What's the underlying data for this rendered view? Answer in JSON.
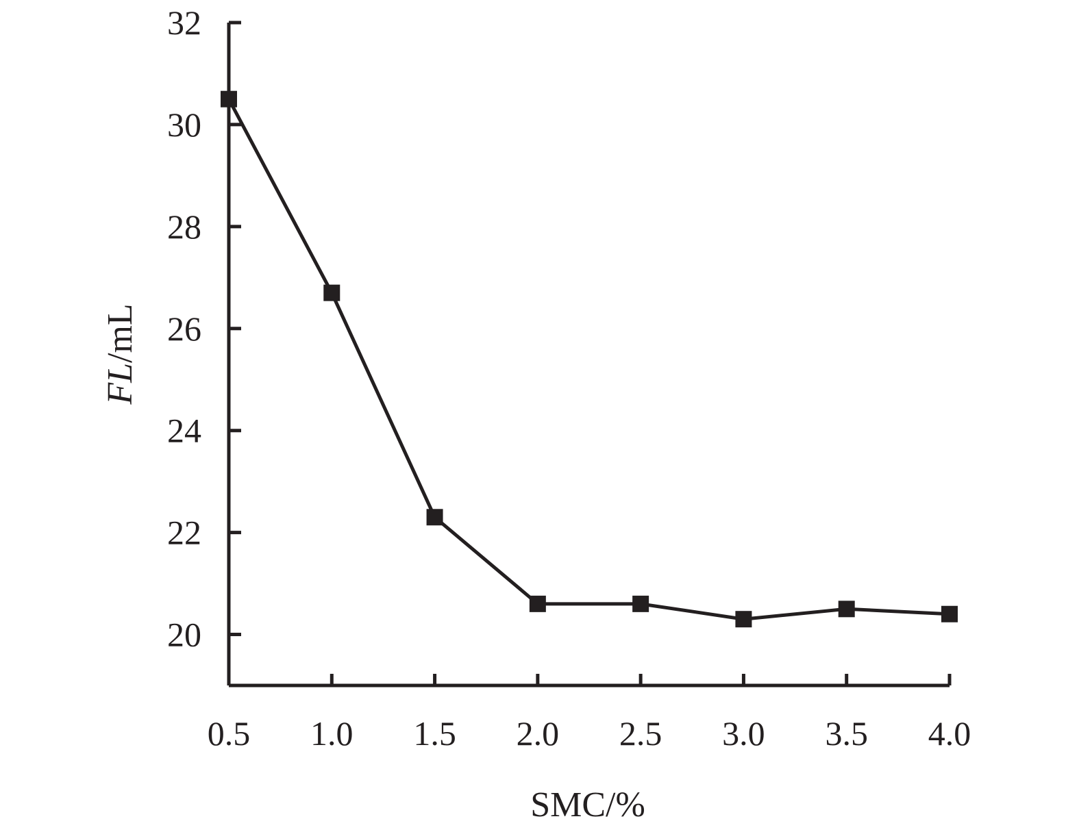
{
  "chart_data": {
    "type": "line",
    "xlabel": "SMC/%",
    "ylabel_italic": "FL",
    "ylabel_rest": "/mL",
    "x": [
      0.5,
      1.0,
      1.5,
      2.0,
      2.5,
      3.0,
      3.5,
      4.0
    ],
    "x_tick_labels": [
      "0.5",
      "1.0",
      "1.5",
      "2.0",
      "2.5",
      "3.0",
      "3.5",
      "4.0"
    ],
    "y_ticks": [
      20,
      22,
      24,
      26,
      28,
      30,
      32
    ],
    "y_tick_labels": [
      "20",
      "22",
      "24",
      "26",
      "28",
      "30",
      "32"
    ],
    "ylim": [
      19,
      32
    ],
    "xlim": [
      0.5,
      4.0
    ],
    "series": [
      {
        "values": [
          30.5,
          26.7,
          22.3,
          20.6,
          20.6,
          20.3,
          20.5,
          20.4
        ]
      }
    ],
    "marker": "square",
    "color": "#231f20",
    "grid": false,
    "legend": "none"
  }
}
